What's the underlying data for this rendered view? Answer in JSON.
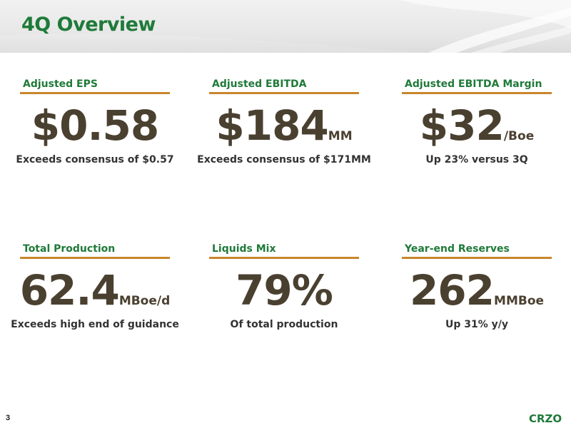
{
  "slide": {
    "title": "4Q Overview",
    "page_number": "3",
    "logo_text": "CRZO"
  },
  "metrics": [
    {
      "label": "Adjusted EPS",
      "value": "$0.58",
      "unit": "",
      "description": "Exceeds consensus of $0.57"
    },
    {
      "label": "Adjusted EBITDA",
      "value": "$184",
      "unit": "MM",
      "description": "Exceeds consensus of $171MM"
    },
    {
      "label": "Adjusted EBITDA Margin",
      "value": "$32",
      "unit": "/Boe",
      "description": "Up 23% versus 3Q"
    },
    {
      "label": "Total Production",
      "value": "62.4",
      "unit": "MBoe/d",
      "description": "Exceeds high end of guidance"
    },
    {
      "label": "Liquids Mix",
      "value": "79%",
      "unit": "",
      "description": "Of total production"
    },
    {
      "label": "Year-end Reserves",
      "value": "262",
      "unit": "MMBoe",
      "description": "Up 31% y/y"
    }
  ],
  "colors": {
    "title_green": "#1f7a39",
    "underline_gold": "#c8862a",
    "value_brown": "#4a4030"
  }
}
